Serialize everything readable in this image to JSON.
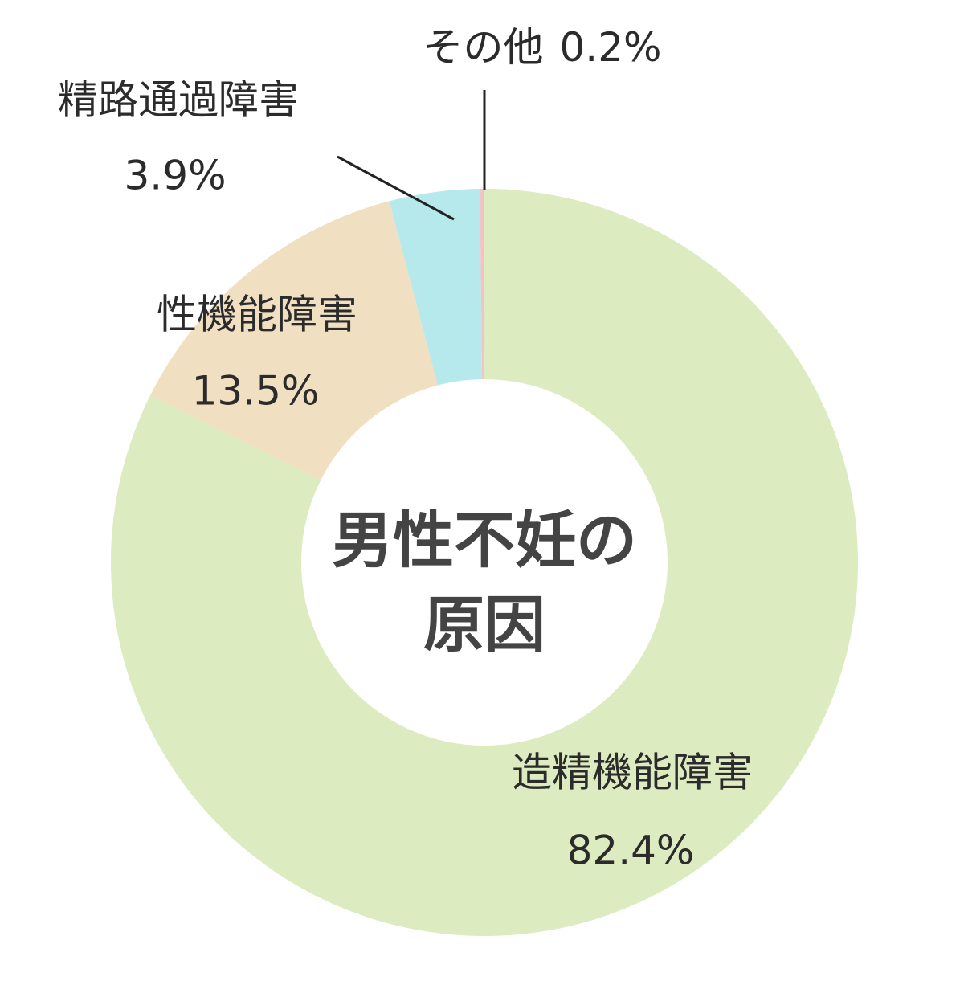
{
  "chart_data": {
    "type": "donut",
    "title": "男性不妊の原因",
    "categories": [
      "造精機能障害",
      "性機能障害",
      "精路通過障害",
      "その他"
    ],
    "values": [
      82.4,
      13.5,
      3.9,
      0.2
    ],
    "value_labels": [
      "82.4%",
      "13.5%",
      "3.9%",
      "0.2%"
    ],
    "colors": [
      "#dcebc0",
      "#f0dfc0",
      "#b6e9ec",
      "#f4c2c2"
    ]
  }
}
